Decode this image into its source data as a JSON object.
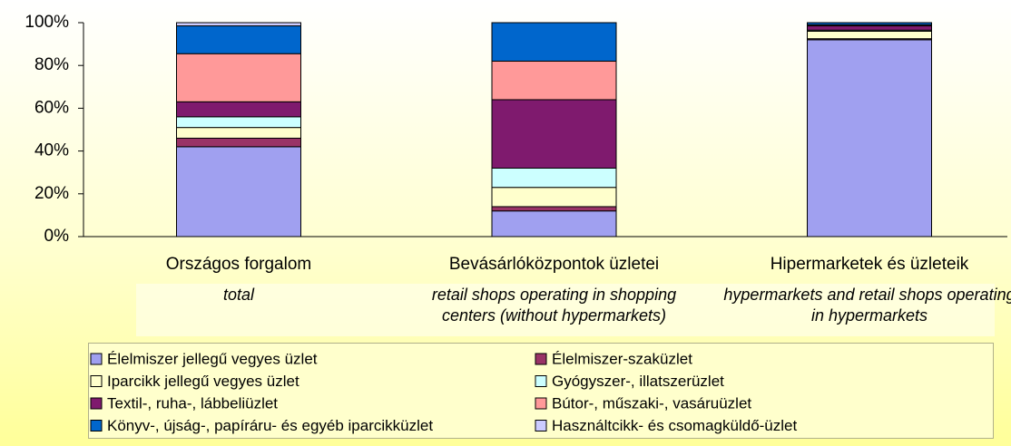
{
  "chart_data": {
    "type": "stacked_bar",
    "categories": [
      "Országos forgalom",
      "Bevásárlóközpontok üzletei",
      "Hipermarketek és üzleteik"
    ],
    "category_subtitles": [
      "total",
      "retail shops operating  in shopping centers (without hypermarkets)",
      "hypermarkets and  retail shops operating in hypermarkets"
    ],
    "series": [
      {
        "name": "Élelmiszer jellegű vegyes üzlet",
        "color": "#a0a0f0",
        "values": [
          42,
          12,
          92
        ]
      },
      {
        "name": "Élelmiszer-szaküzlet",
        "color": "#993366",
        "values": [
          4,
          2,
          0.5
        ]
      },
      {
        "name": "Iparcikk jellegű vegyes üzlet",
        "color": "#ffffcc",
        "values": [
          5,
          9,
          3.5
        ]
      },
      {
        "name": "Gyógyszer-, illatszerüzlet",
        "color": "#ccffff",
        "values": [
          5,
          9,
          0.5
        ]
      },
      {
        "name": "Textil-, ruha-, lábbeliüzlet",
        "color": "#7f1a6e",
        "values": [
          7,
          32,
          2
        ]
      },
      {
        "name": "Bútor-, műszaki-, vasáruüzlet",
        "color": "#ff9999",
        "values": [
          22.5,
          18,
          0.5
        ]
      },
      {
        "name": "Könyv-, újság-, papíráru- és egyéb iparcikküzlet",
        "color": "#0066cc",
        "values": [
          13,
          18,
          1
        ]
      },
      {
        "name": "Használtcikk- és csomagküldő-üzlet",
        "color": "#ccccff",
        "values": [
          1.5,
          0,
          0
        ]
      }
    ],
    "ylim": [
      0,
      100
    ],
    "yticks": [
      {
        "value": 0,
        "label": "0%"
      },
      {
        "value": 20,
        "label": "20%"
      },
      {
        "value": 40,
        "label": "40%"
      },
      {
        "value": 60,
        "label": "60%"
      },
      {
        "value": 80,
        "label": "80%"
      },
      {
        "value": 100,
        "label": "100%"
      }
    ]
  }
}
